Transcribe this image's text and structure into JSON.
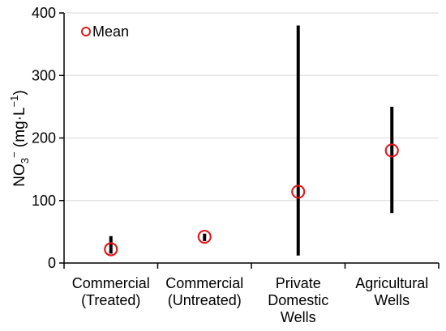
{
  "chart_data": {
    "type": "scatter",
    "categories": [
      [
        "Commercial",
        "(Treated)"
      ],
      [
        "Commercial",
        "(Untreated)"
      ],
      [
        "Private",
        "Domestic",
        "Wells"
      ],
      [
        "Agricultural",
        "Wells"
      ]
    ],
    "series": [
      {
        "name": "Mean",
        "values": [
          22,
          42,
          114,
          180
        ],
        "ranges": [
          [
            15,
            43
          ],
          [
            35,
            47
          ],
          [
            12,
            380
          ],
          [
            80,
            250
          ]
        ]
      }
    ],
    "ylim": [
      0,
      400
    ],
    "yticks": [
      0,
      100,
      200,
      300,
      400
    ],
    "ylabel": {
      "main": "NO",
      "sub": "3",
      "sup": "−",
      "mid": " (mg·L",
      "sup2": "−1",
      "end": ")"
    },
    "legend": {
      "position": "top-left",
      "label": "Mean"
    },
    "grid": true,
    "colors": {
      "marker": "#e31a1c",
      "bar": "#000000",
      "grid": "#d9d9d9",
      "axis": "#000000"
    }
  }
}
